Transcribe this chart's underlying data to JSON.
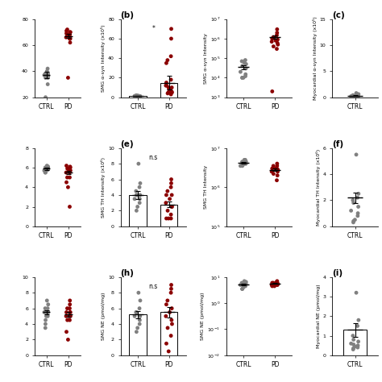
{
  "panels": {
    "top_left": {
      "ylabel": "",
      "ymin": 20,
      "ymax": 80,
      "yticks": [
        20,
        40,
        60,
        80
      ],
      "ctrl_dots": [
        40,
        36,
        42,
        38,
        35,
        38,
        37,
        35,
        30,
        38,
        20,
        38
      ],
      "pd_dots": [
        70,
        68,
        65,
        72,
        69,
        65,
        68,
        66,
        62,
        70,
        68,
        65,
        71,
        35
      ],
      "ctrl_mean": 37,
      "ctrl_sem": 2.5,
      "pd_mean": 67,
      "pd_sem": 1.5,
      "log": false
    },
    "top_mid": {
      "label": "(b)",
      "ylabel": "SMG α-syn Intensity (x10⁵)",
      "ymin": 0,
      "ymax": 80,
      "yticks": [
        0,
        20,
        40,
        60,
        80
      ],
      "ctrl_dots": [
        1.5,
        1.0,
        1.2,
        1.0,
        1.8,
        1.0,
        1.3,
        1.0,
        1.0,
        1.5,
        1.0,
        2.0,
        1.5,
        1.0,
        1.2
      ],
      "pd_dots": [
        70,
        60,
        42,
        38,
        35,
        10,
        8,
        12,
        6,
        5,
        4,
        18,
        15,
        10,
        3,
        5,
        8,
        12
      ],
      "ctrl_mean": 1.3,
      "ctrl_sem": 0.2,
      "pd_mean": 15,
      "pd_sem": 7,
      "bar": true,
      "log": false,
      "annotation": "*",
      "pd_outlier": 70
    },
    "top_right": {
      "ylabel": "SMG α-syn Intensity",
      "ymin": 1000,
      "ymax": 10000000,
      "ctrl_dots": [
        60000,
        50000,
        80000,
        70000,
        40000,
        30000,
        20000,
        15000,
        12000,
        10000,
        10000,
        10000
      ],
      "pd_dots": [
        3000000,
        2000000,
        1500000,
        1200000,
        1000000,
        900000,
        800000,
        700000,
        600000,
        500000,
        400000,
        300000,
        2000
      ],
      "ctrl_mean": 35000,
      "ctrl_sem": 8000,
      "pd_mean": 1200000,
      "pd_sem": 250000,
      "log": true
    },
    "top_far_right": {
      "label": "(c)",
      "ylabel": "Myocardial α-syn Intensity (x10⁵)",
      "ymin": 0,
      "ymax": 15,
      "yticks": [
        0,
        5.0,
        10.0,
        15.0
      ],
      "ctrl_dots": [
        0.8,
        0.6,
        0.5,
        0.4,
        0.3,
        0.25,
        0.2,
        0.18,
        0.15,
        0.15,
        0.12,
        0.1,
        0.1,
        0.08
      ],
      "ctrl_mean": 0.3,
      "ctrl_sem": 0.08,
      "log": false
    },
    "mid_left": {
      "ylabel": "",
      "ymin": 0,
      "ymax": 8,
      "yticks": [
        0,
        2,
        4,
        6,
        8
      ],
      "ctrl_dots": [
        6.2,
        6.0,
        5.8,
        5.5,
        6.0,
        6.1,
        5.7,
        5.9,
        5.8,
        6.0,
        5.5,
        5.6,
        6.0,
        5.8
      ],
      "pd_dots": [
        6.0,
        5.8,
        5.5,
        5.0,
        6.2,
        6.0,
        5.8,
        5.5,
        6.1,
        5.7,
        5.9,
        5.0,
        4.5,
        4.0,
        2.0
      ],
      "ctrl_mean": 5.9,
      "ctrl_sem": 0.12,
      "pd_mean": 5.5,
      "pd_sem": 0.2,
      "log": false
    },
    "mid_mid": {
      "label": "(e)",
      "ylabel": "SMG TH Intensity (x10⁶)",
      "ymin": 0,
      "ymax": 10,
      "yticks": [
        0,
        2,
        4,
        6,
        8,
        10
      ],
      "ctrl_dots": [
        8.0,
        5.5,
        5.0,
        4.5,
        4.0,
        4.0,
        3.5,
        3.5,
        3.0,
        2.5,
        2.0
      ],
      "pd_dots": [
        6.0,
        5.5,
        5.0,
        4.5,
        4.0,
        4.0,
        3.5,
        3.0,
        2.5,
        2.5,
        2.0,
        1.5,
        1.0,
        1.0,
        1.0
      ],
      "ctrl_mean": 4.0,
      "ctrl_sem": 0.5,
      "pd_mean": 2.8,
      "pd_sem": 0.4,
      "bar": true,
      "log": false,
      "annotation": "n.s"
    },
    "mid_right": {
      "ylabel": "SMG TH Intensity",
      "ymin": 100000,
      "ymax": 10000000,
      "ctrl_dots": [
        5000000,
        4500000,
        5000000,
        4000000,
        4500000,
        4000000,
        3500000,
        4000000,
        4200000,
        3800000,
        3500000,
        4300000
      ],
      "pd_dots": [
        4000000,
        3500000,
        3000000,
        3500000,
        3000000,
        2500000,
        3000000,
        2500000,
        2000000,
        2800000,
        2200000,
        1500000
      ],
      "ctrl_mean": 4200000,
      "ctrl_sem": 180000,
      "pd_mean": 2800000,
      "pd_sem": 220000,
      "log": true
    },
    "mid_far_right": {
      "label": "(f)",
      "ylabel": "Myocardial TH Intensity (x10⁶)",
      "ymin": 0,
      "ymax": 6,
      "yticks": [
        0,
        2,
        4,
        6
      ],
      "ctrl_dots": [
        5.5,
        2.5,
        2.2,
        2.0,
        1.8,
        1.5,
        1.2,
        1.0,
        0.8,
        0.5,
        0.4,
        0.3
      ],
      "ctrl_mean": 2.2,
      "ctrl_sem": 0.4,
      "log": false
    },
    "bot_left": {
      "ylabel": "",
      "ymin": 0,
      "ymax": 10,
      "yticks": [
        0,
        2,
        4,
        6,
        8,
        10
      ],
      "ctrl_dots": [
        7.0,
        6.5,
        6.0,
        6.0,
        5.5,
        5.5,
        5.5,
        5.5,
        5.0,
        5.0,
        4.5,
        4.0,
        3.5
      ],
      "pd_dots": [
        7.0,
        6.5,
        6.0,
        6.0,
        5.5,
        5.5,
        5.0,
        5.0,
        5.5,
        5.0,
        4.5,
        4.5,
        3.0,
        2.0
      ],
      "ctrl_mean": 5.5,
      "ctrl_sem": 0.3,
      "pd_mean": 5.2,
      "pd_sem": 0.3,
      "log": false
    },
    "bot_mid": {
      "label": "(h)",
      "ylabel": "SMG NE (pmol/mg)",
      "ymin": 0,
      "ymax": 10,
      "yticks": [
        0,
        2,
        4,
        6,
        8,
        10
      ],
      "ctrl_dots": [
        8.0,
        7.0,
        6.0,
        5.5,
        5.5,
        5.0,
        5.0,
        4.5,
        4.0,
        3.5,
        3.0
      ],
      "pd_dots": [
        9.0,
        8.5,
        8.0,
        7.0,
        6.5,
        6.0,
        5.5,
        5.0,
        4.5,
        4.0,
        3.5,
        2.5,
        1.5,
        0.5
      ],
      "ctrl_mean": 5.2,
      "ctrl_sem": 0.5,
      "pd_mean": 5.5,
      "pd_sem": 0.7,
      "bar": true,
      "log": false,
      "annotation": "n.s"
    },
    "bot_right": {
      "ylabel": "SMG NE (pmol/mg)",
      "ymin": 0.01,
      "ymax": 10,
      "ctrl_dots": [
        7.0,
        6.5,
        6.0,
        6.0,
        5.5,
        5.5,
        5.0,
        5.0,
        4.5,
        4.0,
        3.5,
        3.5
      ],
      "pd_dots": [
        7.0,
        6.5,
        6.5,
        6.0,
        6.0,
        5.5,
        5.5,
        5.0,
        5.0,
        5.5,
        5.0,
        5.0,
        4.5,
        4.5
      ],
      "ctrl_mean": 5.3,
      "ctrl_sem": 0.3,
      "pd_mean": 5.6,
      "pd_sem": 0.2,
      "log": true
    },
    "bot_far_right": {
      "label": "(i)",
      "ylabel": "Myocardial NE (pmol/mg)",
      "ymin": 0,
      "ymax": 4,
      "yticks": [
        0,
        1,
        2,
        3,
        4
      ],
      "ctrl_dots": [
        3.2,
        1.8,
        1.5,
        1.0,
        0.8,
        0.7,
        0.6,
        0.5,
        0.4,
        0.45,
        0.55,
        0.35,
        0.3
      ],
      "ctrl_mean": 1.3,
      "ctrl_sem": 0.35,
      "bar": true,
      "log": false
    }
  },
  "ctrl_color": "#808080",
  "pd_color": "#8B0000",
  "bar_edge_color": "#000000",
  "bar_fill": "#FFFFFF",
  "dot_size": 12,
  "fig_width": 4.74,
  "fig_height": 4.74
}
